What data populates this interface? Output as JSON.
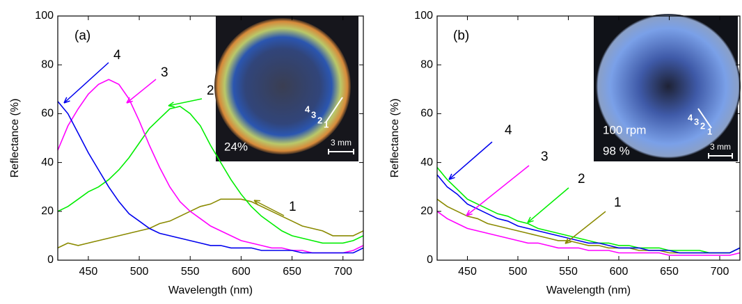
{
  "chart_data": [
    {
      "type": "line",
      "panel_label": "(a)",
      "xlabel": "Wavelength (nm)",
      "ylabel": "Reflectance (%)",
      "xlim": [
        420,
        720
      ],
      "ylim": [
        0,
        100
      ],
      "xticks": [
        450,
        500,
        550,
        600,
        650,
        700
      ],
      "yticks": [
        0,
        20,
        40,
        60,
        80,
        100
      ],
      "x": [
        420,
        430,
        440,
        450,
        460,
        470,
        480,
        490,
        500,
        510,
        520,
        530,
        540,
        550,
        560,
        570,
        580,
        590,
        600,
        610,
        620,
        630,
        640,
        650,
        660,
        670,
        680,
        690,
        700,
        710,
        720
      ],
      "series": [
        {
          "name": "1",
          "color": "#8a8a00",
          "values": [
            5,
            7,
            6,
            7,
            8,
            9,
            10,
            11,
            12,
            13,
            15,
            16,
            18,
            20,
            22,
            23,
            25,
            25,
            25,
            24,
            22,
            20,
            18,
            16,
            14,
            13,
            12,
            10,
            10,
            10,
            12
          ]
        },
        {
          "name": "2",
          "color": "#00ee00",
          "values": [
            20,
            22,
            25,
            28,
            30,
            33,
            37,
            42,
            48,
            54,
            58,
            62,
            63,
            60,
            55,
            47,
            40,
            33,
            27,
            22,
            18,
            15,
            12,
            10,
            9,
            8,
            7,
            7,
            7,
            8,
            10
          ]
        },
        {
          "name": "3",
          "color": "#ff00ff",
          "values": [
            45,
            55,
            62,
            68,
            72,
            74,
            72,
            66,
            57,
            47,
            38,
            30,
            24,
            20,
            17,
            14,
            12,
            10,
            8,
            7,
            6,
            5,
            5,
            4,
            4,
            3,
            3,
            3,
            3,
            4,
            6
          ]
        },
        {
          "name": "4",
          "color": "#0000ee",
          "values": [
            65,
            60,
            52,
            44,
            37,
            30,
            24,
            19,
            16,
            13,
            11,
            10,
            9,
            8,
            7,
            6,
            6,
            5,
            5,
            5,
            4,
            4,
            4,
            4,
            3,
            3,
            3,
            3,
            3,
            3,
            5
          ]
        }
      ],
      "inset": {
        "captions": [
          "24%"
        ],
        "scale_bar": "3 mm",
        "markers": [
          "4",
          "3",
          "2",
          "1"
        ]
      }
    },
    {
      "type": "line",
      "panel_label": "(b)",
      "xlabel": "Wavelength (nm)",
      "ylabel": "Reflectance (%)",
      "xlim": [
        420,
        720
      ],
      "ylim": [
        0,
        100
      ],
      "xticks": [
        450,
        500,
        550,
        600,
        650,
        700
      ],
      "yticks": [
        0,
        20,
        40,
        60,
        80,
        100
      ],
      "x": [
        420,
        430,
        440,
        450,
        460,
        470,
        480,
        490,
        500,
        510,
        520,
        530,
        540,
        550,
        560,
        570,
        580,
        590,
        600,
        610,
        620,
        630,
        640,
        650,
        660,
        670,
        680,
        690,
        700,
        710,
        720
      ],
      "series": [
        {
          "name": "1",
          "color": "#8a8a00",
          "values": [
            25,
            22,
            20,
            18,
            17,
            15,
            14,
            13,
            12,
            11,
            10,
            9,
            8,
            8,
            7,
            6,
            6,
            5,
            5,
            5,
            4,
            4,
            4,
            3,
            3,
            3,
            3,
            3,
            3,
            3,
            5
          ]
        },
        {
          "name": "2",
          "color": "#00ee00",
          "values": [
            38,
            33,
            29,
            25,
            23,
            21,
            19,
            18,
            16,
            15,
            13,
            12,
            11,
            10,
            9,
            8,
            7,
            7,
            6,
            6,
            5,
            5,
            5,
            4,
            4,
            4,
            4,
            3,
            3,
            3,
            5
          ]
        },
        {
          "name": "3",
          "color": "#ff00ff",
          "values": [
            20,
            17,
            15,
            13,
            12,
            11,
            10,
            9,
            8,
            7,
            7,
            6,
            5,
            5,
            5,
            4,
            4,
            4,
            3,
            3,
            3,
            3,
            3,
            2,
            2,
            2,
            2,
            2,
            2,
            2,
            3
          ]
        },
        {
          "name": "4",
          "color": "#0000ee",
          "values": [
            35,
            30,
            27,
            23,
            21,
            19,
            17,
            16,
            14,
            13,
            12,
            11,
            10,
            9,
            8,
            7,
            7,
            6,
            5,
            5,
            5,
            4,
            4,
            4,
            3,
            3,
            3,
            3,
            3,
            3,
            5
          ]
        }
      ],
      "inset": {
        "captions": [
          "100 rpm",
          "98 %"
        ],
        "scale_bar": "3 mm",
        "markers": [
          "4",
          "3",
          "2",
          "1"
        ]
      }
    }
  ]
}
